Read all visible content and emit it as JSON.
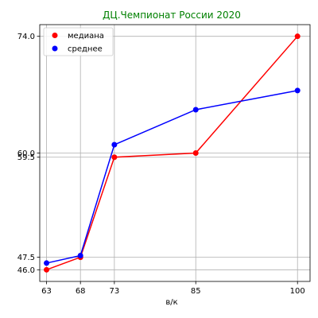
{
  "chart_data": {
    "type": "line",
    "title": "ДЦ.Чемпионат России 2020",
    "title_color": "#008000",
    "xlabel": "в/к",
    "ylabel": "",
    "x": [
      63,
      68,
      73,
      85,
      100
    ],
    "x_ticks": [
      "63",
      "68",
      "73",
      "85",
      "100"
    ],
    "y_ticks": [
      "46.0",
      "47.5",
      "59.5",
      "60.0",
      "74.0"
    ],
    "xlim": [
      62,
      101.85
    ],
    "ylim": [
      44.6,
      75.4
    ],
    "grid": true,
    "legend_position": "top-left",
    "series": [
      {
        "name": "медиана",
        "color": "#ff0000",
        "values": [
          46.0,
          47.5,
          59.5,
          60.0,
          74.0
        ]
      },
      {
        "name": "среднее",
        "color": "#0000ff",
        "values": [
          46.8,
          47.7,
          61.0,
          65.2,
          67.5
        ]
      }
    ]
  }
}
